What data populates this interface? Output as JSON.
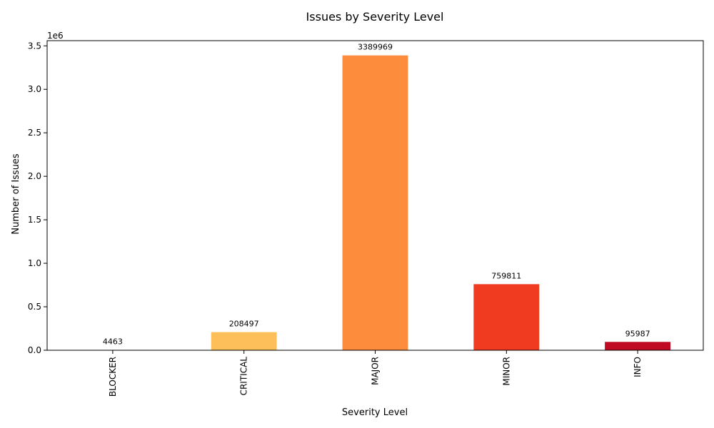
{
  "chart_data": {
    "type": "bar",
    "title": "Issues by Severity Level",
    "xlabel": "Severity Level",
    "ylabel": "Number of Issues",
    "y_offset_text": "1e6",
    "y_scale": 1000000,
    "categories": [
      "BLOCKER",
      "CRITICAL",
      "MAJOR",
      "MINOR",
      "INFO"
    ],
    "values": [
      4463,
      208497,
      3389969,
      759811,
      95987
    ],
    "data_labels": [
      "4463",
      "208497",
      "3389969",
      "759811",
      "95987"
    ],
    "colors": [
      "#fee08b",
      "#fdbf5a",
      "#fd8d3c",
      "#f03b20",
      "#c00a23"
    ],
    "ylim": [
      0,
      3559467
    ],
    "yticks": [
      0,
      500000,
      1000000,
      1500000,
      2000000,
      2500000,
      3000000,
      3500000
    ],
    "ytick_labels": [
      "0.0",
      "0.5",
      "1.0",
      "1.5",
      "2.0",
      "2.5",
      "3.0",
      "3.5"
    ],
    "grid": false,
    "legend": "none"
  }
}
